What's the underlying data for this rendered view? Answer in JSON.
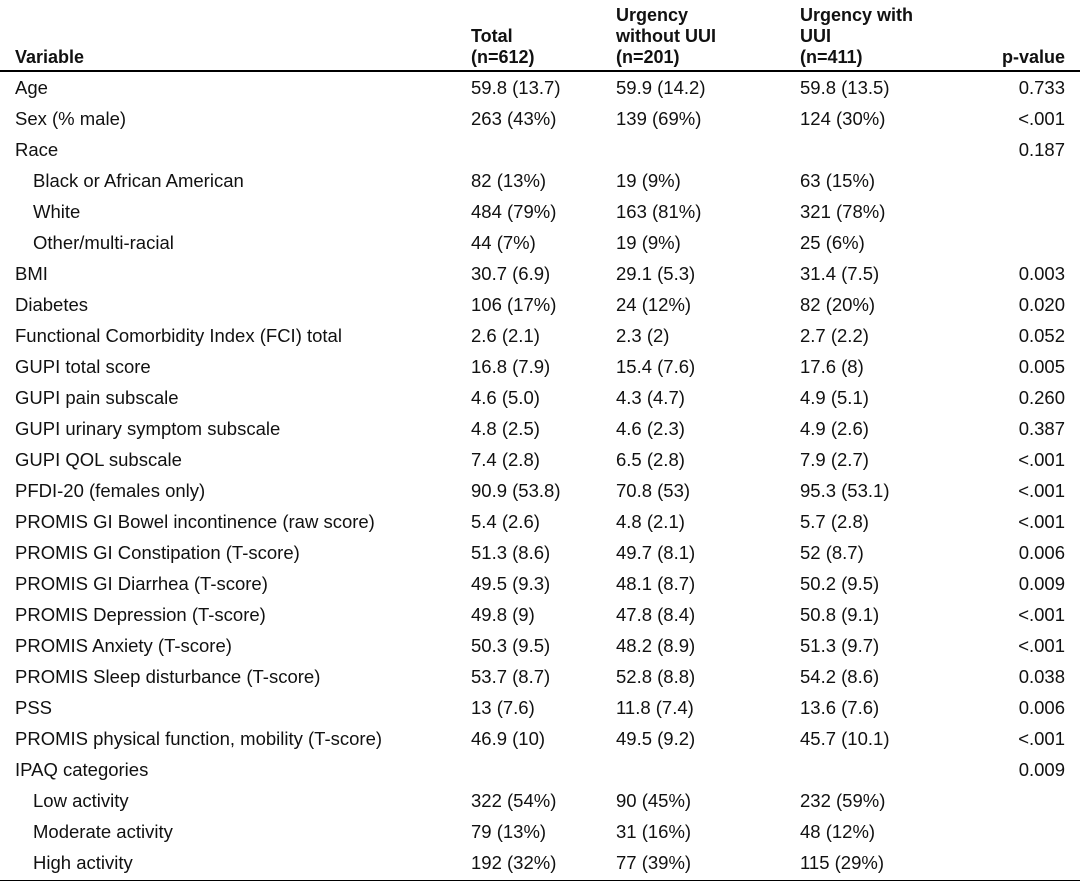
{
  "table": {
    "headers": {
      "variable": "Variable",
      "total": "Total\n(n=612)",
      "urgency_without": "Urgency\nwithout UUI\n(n=201)",
      "urgency_with": "Urgency with\nUUI\n(n=411)",
      "pvalue": "p-value"
    },
    "rows": [
      {
        "label": "Age",
        "indent": false,
        "total": "59.8 (13.7)",
        "without": "59.9 (14.2)",
        "with": "59.8 (13.5)",
        "p": "0.733"
      },
      {
        "label": "Sex (% male)",
        "indent": false,
        "total": "263 (43%)",
        "without": "139 (69%)",
        "with": "124 (30%)",
        "p": "<.001"
      },
      {
        "label": "Race",
        "indent": false,
        "total": "",
        "without": "",
        "with": "",
        "p": "0.187"
      },
      {
        "label": "Black or African American",
        "indent": true,
        "total": "82 (13%)",
        "without": "19 (9%)",
        "with": "63 (15%)",
        "p": ""
      },
      {
        "label": "White",
        "indent": true,
        "total": "484 (79%)",
        "without": "163 (81%)",
        "with": "321 (78%)",
        "p": ""
      },
      {
        "label": "Other/multi-racial",
        "indent": true,
        "total": "44 (7%)",
        "without": "19 (9%)",
        "with": "25 (6%)",
        "p": ""
      },
      {
        "label": "BMI",
        "indent": false,
        "total": "30.7 (6.9)",
        "without": "29.1 (5.3)",
        "with": "31.4 (7.5)",
        "p": "0.003"
      },
      {
        "label": "Diabetes",
        "indent": false,
        "total": "106 (17%)",
        "without": "24 (12%)",
        "with": "82 (20%)",
        "p": "0.020"
      },
      {
        "label": "Functional Comorbidity Index (FCI) total",
        "indent": false,
        "total": "2.6 (2.1)",
        "without": "2.3 (2)",
        "with": "2.7 (2.2)",
        "p": "0.052"
      },
      {
        "label": "GUPI total score",
        "indent": false,
        "total": "16.8 (7.9)",
        "without": "15.4 (7.6)",
        "with": "17.6 (8)",
        "p": "0.005"
      },
      {
        "label": "GUPI pain subscale",
        "indent": false,
        "total": "4.6 (5.0)",
        "without": "4.3 (4.7)",
        "with": "4.9 (5.1)",
        "p": "0.260"
      },
      {
        "label": "GUPI urinary symptom subscale",
        "indent": false,
        "total": "4.8 (2.5)",
        "without": "4.6 (2.3)",
        "with": "4.9 (2.6)",
        "p": "0.387"
      },
      {
        "label": "GUPI QOL subscale",
        "indent": false,
        "total": "7.4 (2.8)",
        "without": "6.5 (2.8)",
        "with": "7.9 (2.7)",
        "p": "<.001"
      },
      {
        "label": "PFDI-20 (females only)",
        "indent": false,
        "total": "90.9 (53.8)",
        "without": "70.8 (53)",
        "with": "95.3 (53.1)",
        "p": "<.001"
      },
      {
        "label": "PROMIS GI Bowel incontinence (raw score)",
        "indent": false,
        "total": "5.4 (2.6)",
        "without": "4.8 (2.1)",
        "with": "5.7 (2.8)",
        "p": "<.001"
      },
      {
        "label": "PROMIS GI Constipation (T-score)",
        "indent": false,
        "total": "51.3 (8.6)",
        "without": "49.7 (8.1)",
        "with": "52 (8.7)",
        "p": "0.006"
      },
      {
        "label": "PROMIS GI Diarrhea (T-score)",
        "indent": false,
        "total": "49.5 (9.3)",
        "without": "48.1 (8.7)",
        "with": "50.2 (9.5)",
        "p": "0.009"
      },
      {
        "label": "PROMIS Depression (T-score)",
        "indent": false,
        "total": "49.8 (9)",
        "without": "47.8 (8.4)",
        "with": "50.8 (9.1)",
        "p": "<.001"
      },
      {
        "label": "PROMIS Anxiety (T-score)",
        "indent": false,
        "total": "50.3 (9.5)",
        "without": "48.2 (8.9)",
        "with": "51.3 (9.7)",
        "p": "<.001"
      },
      {
        "label": "PROMIS Sleep disturbance (T-score)",
        "indent": false,
        "total": "53.7 (8.7)",
        "without": "52.8 (8.8)",
        "with": "54.2 (8.6)",
        "p": "0.038"
      },
      {
        "label": "PSS",
        "indent": false,
        "total": "13 (7.6)",
        "without": "11.8 (7.4)",
        "with": "13.6 (7.6)",
        "p": "0.006"
      },
      {
        "label": "PROMIS physical function, mobility (T-score)",
        "indent": false,
        "total": "46.9 (10)",
        "without": "49.5 (9.2)",
        "with": "45.7 (10.1)",
        "p": "<.001"
      },
      {
        "label": "IPAQ categories",
        "indent": false,
        "total": "",
        "without": "",
        "with": "",
        "p": "0.009"
      },
      {
        "label": "Low activity",
        "indent": true,
        "total": "322 (54%)",
        "without": "90 (45%)",
        "with": "232 (59%)",
        "p": ""
      },
      {
        "label": "Moderate activity",
        "indent": true,
        "total": "79 (13%)",
        "without": "31 (16%)",
        "with": "48 (12%)",
        "p": ""
      },
      {
        "label": "High activity",
        "indent": true,
        "total": "192 (32%)",
        "without": "77 (39%)",
        "with": "115 (29%)",
        "p": ""
      }
    ]
  }
}
